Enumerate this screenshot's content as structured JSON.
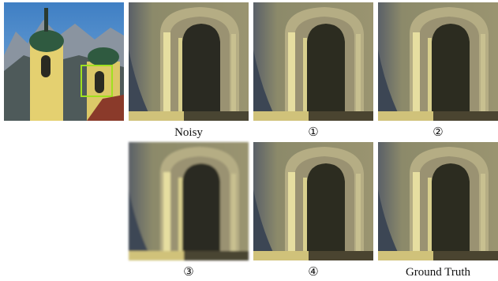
{
  "panels": [
    {
      "label": "Noisy"
    },
    {
      "label": "①"
    },
    {
      "label": "②"
    },
    {
      "label": "③"
    },
    {
      "label": "④"
    },
    {
      "label": "Ground Truth"
    }
  ]
}
